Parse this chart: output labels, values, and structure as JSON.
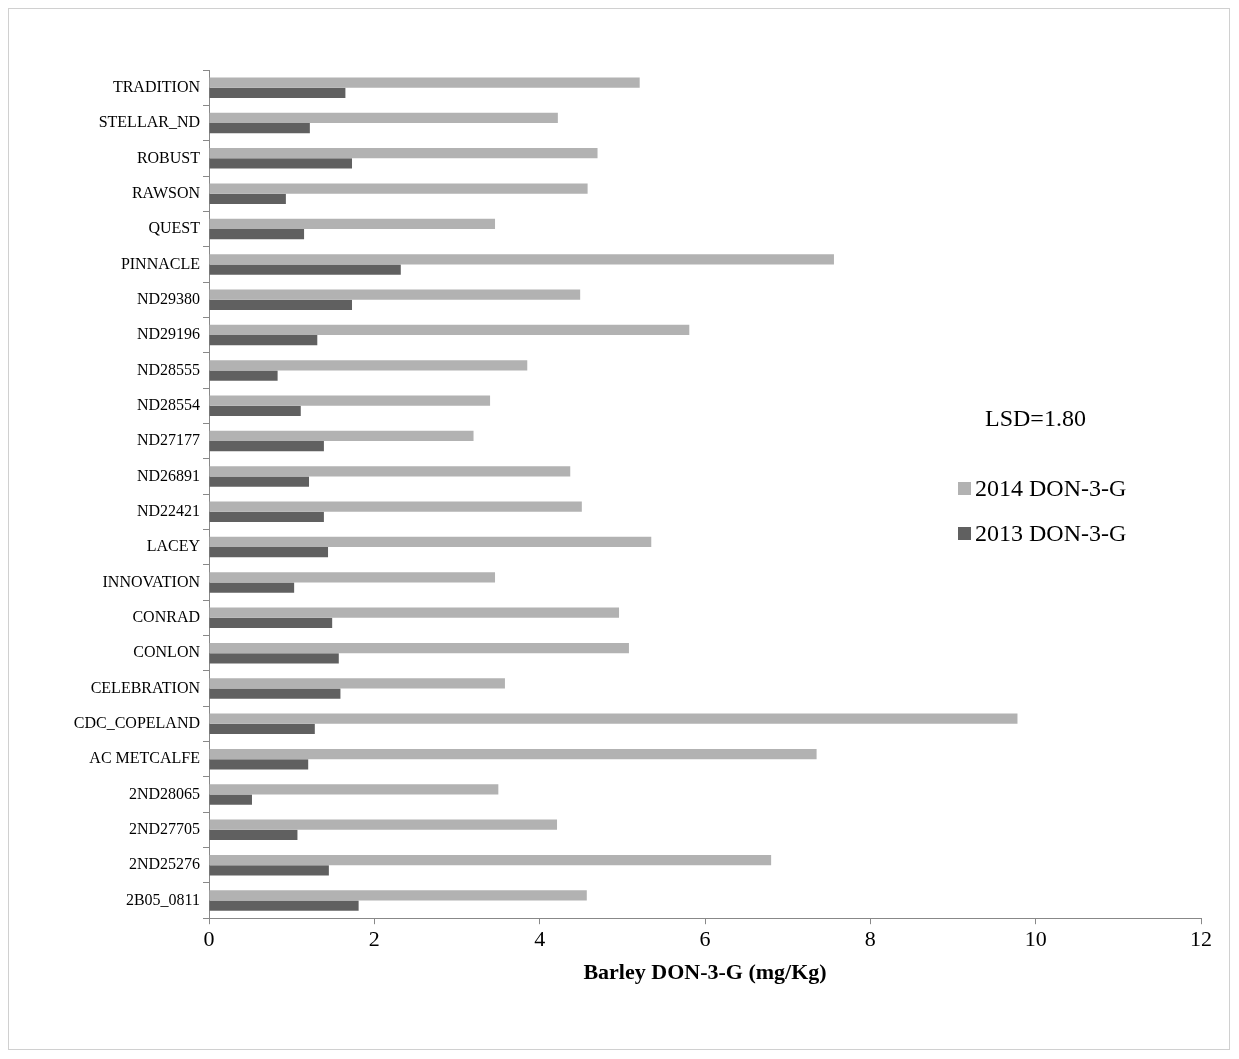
{
  "chart_data": {
    "type": "bar",
    "orientation": "horizontal",
    "xlabel": "Barley DON-3-G (mg/Kg)",
    "categories": [
      "TRADITION",
      "STELLAR_ND",
      "ROBUST",
      "RAWSON",
      "QUEST",
      "PINNACLE",
      "ND29380",
      "ND29196",
      "ND28555",
      "ND28554",
      "ND27177",
      "ND26891",
      "ND22421",
      "LACEY",
      "INNOVATION",
      "CONRAD",
      "CONLON",
      "CELEBRATION",
      "CDC_COPELAND",
      "AC METCALFE",
      "2ND28065",
      "2ND27705",
      "2ND25276",
      "2B05_0811"
    ],
    "series": [
      {
        "name": "2014 DON-3-G",
        "color": "#b2b2b2",
        "values": [
          5.21,
          4.22,
          4.7,
          4.58,
          3.46,
          7.56,
          4.49,
          5.81,
          3.85,
          3.4,
          3.2,
          4.37,
          4.51,
          5.35,
          3.46,
          4.96,
          5.08,
          3.58,
          9.78,
          7.35,
          3.5,
          4.21,
          6.8,
          4.57
        ]
      },
      {
        "name": "2013 DON-3-G",
        "color": "#606060",
        "values": [
          1.65,
          1.22,
          1.73,
          0.93,
          1.15,
          2.32,
          1.73,
          1.31,
          0.83,
          1.11,
          1.39,
          1.21,
          1.39,
          1.44,
          1.03,
          1.49,
          1.57,
          1.59,
          1.28,
          1.2,
          0.52,
          1.07,
          1.45,
          1.81
        ]
      }
    ],
    "xlim": [
      0,
      12
    ],
    "xticks": [
      0,
      2,
      4,
      6,
      8,
      10,
      12
    ],
    "grid": false,
    "legend": "right",
    "annotations": [
      "LSD=1.80"
    ]
  }
}
